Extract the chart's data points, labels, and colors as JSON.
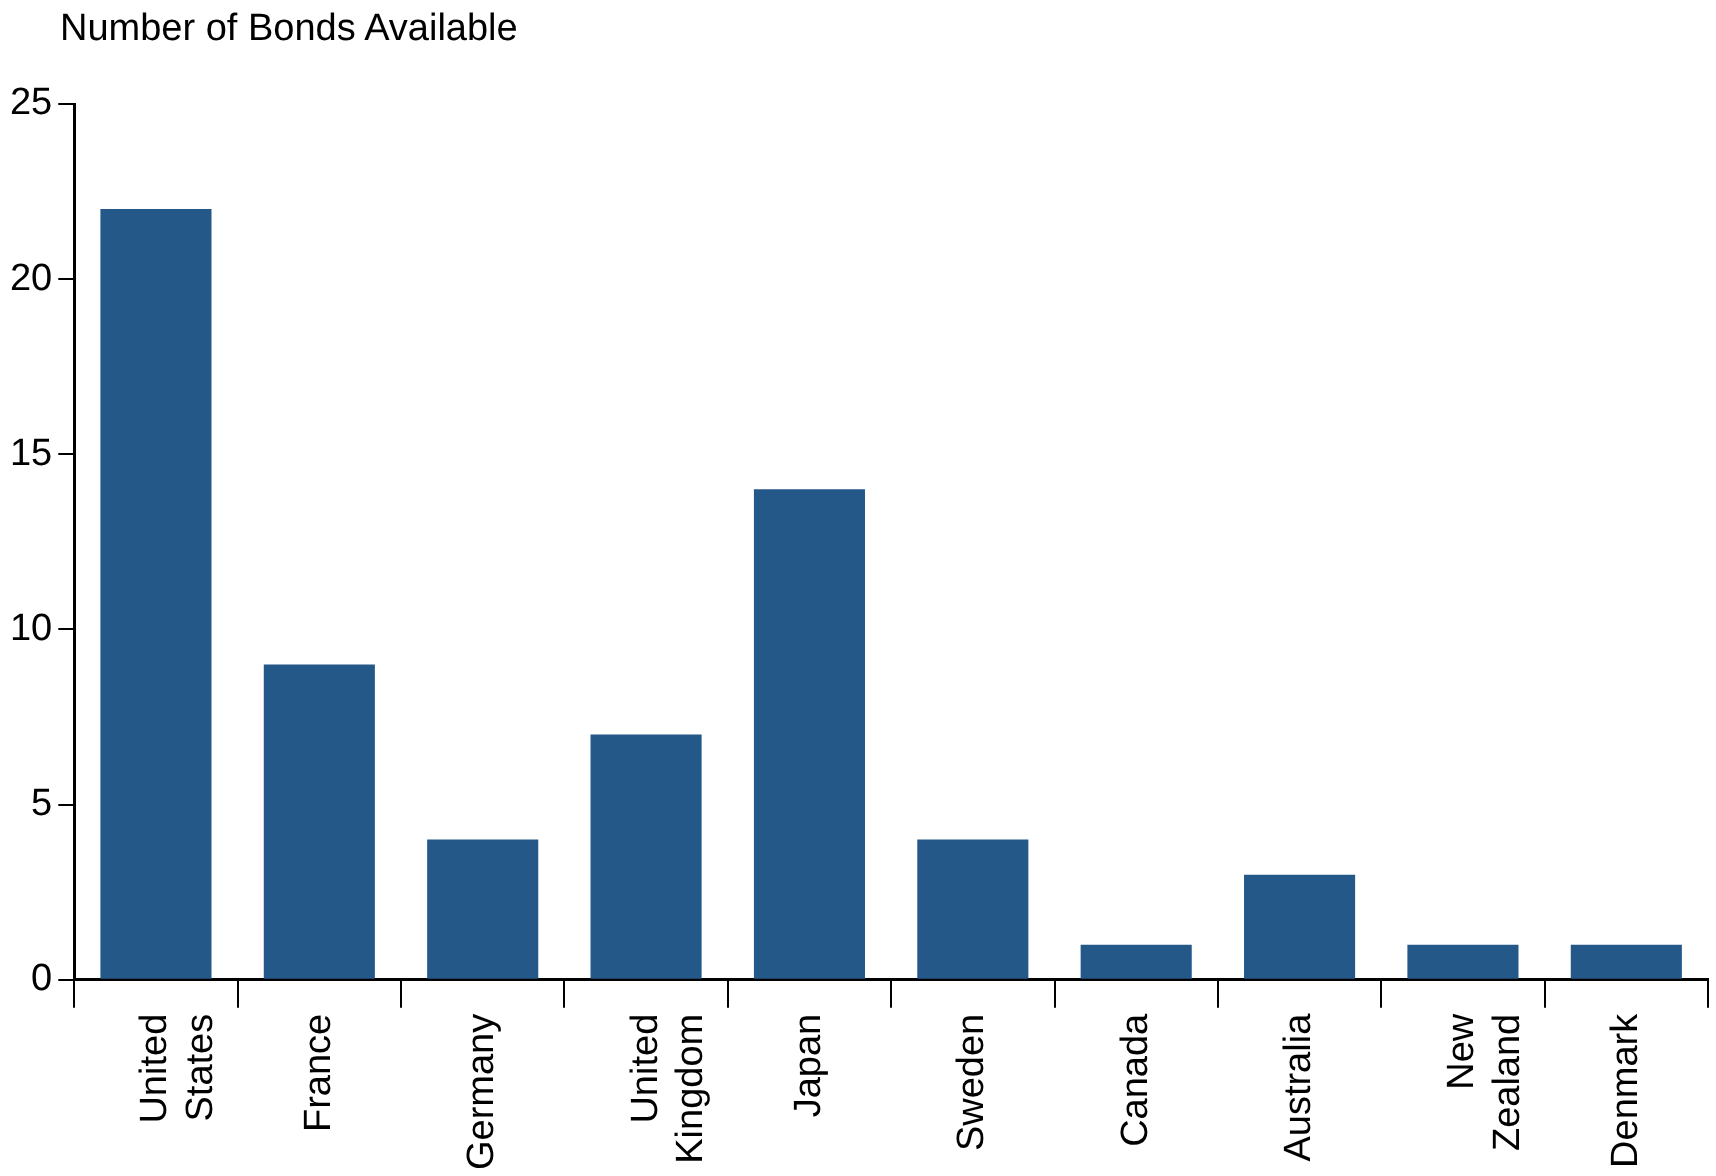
{
  "chart_data": {
    "type": "bar",
    "ylabel": "Number of Bonds Available",
    "categories": [
      "United States",
      "France",
      "Germany",
      "United Kingdom",
      "Japan",
      "Sweden",
      "Canada",
      "Australia",
      "New Zealand",
      "Denmark"
    ],
    "values": [
      22,
      9,
      4,
      7,
      14,
      4,
      1,
      3,
      1,
      1
    ],
    "color": "#245889",
    "ylim": [
      0,
      25
    ],
    "yticks": [
      0,
      5,
      10,
      15,
      20,
      25
    ],
    "grid": false,
    "legend": false
  }
}
